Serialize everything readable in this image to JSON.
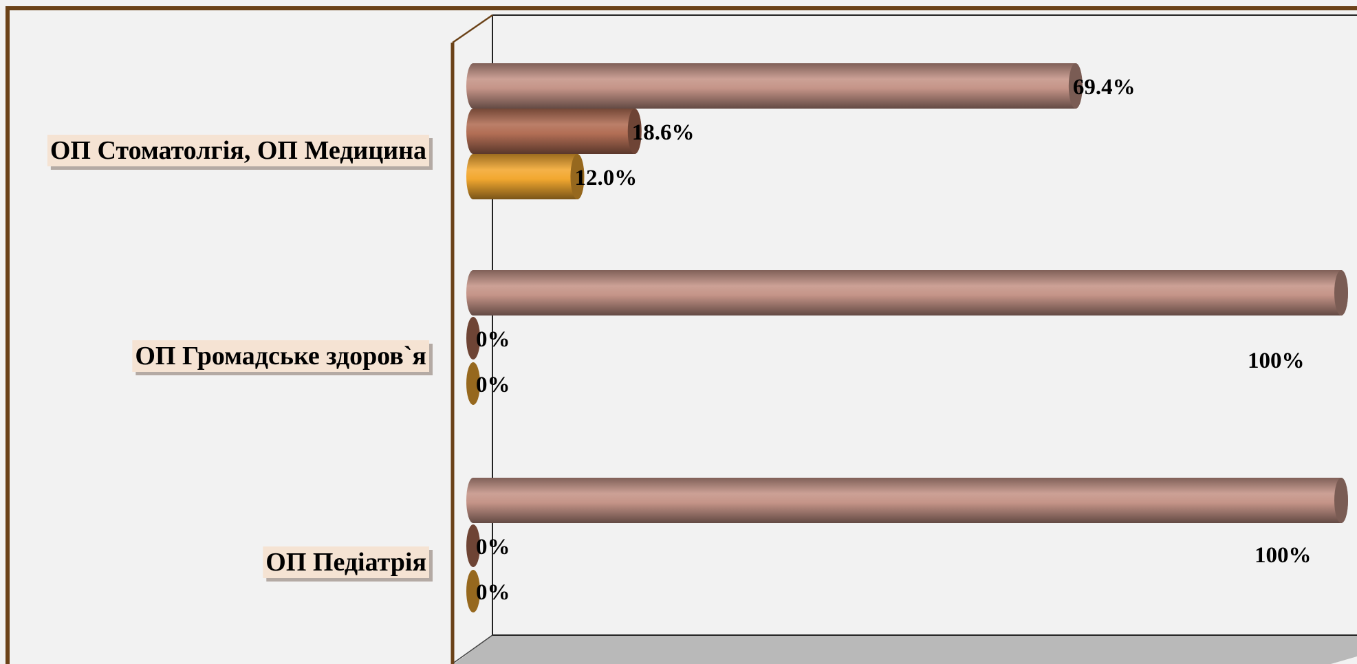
{
  "chart_data": {
    "type": "bar",
    "orientation": "horizontal",
    "style": "3d-cylinder",
    "categories": [
      "ОП Стоматолгія, ОП Медицина",
      "ОП Громадське здоров`я",
      "ОП Педіатрія"
    ],
    "series": [
      {
        "color": "#c59488",
        "values": [
          69.4,
          100,
          100
        ],
        "labels": [
          "69.4%",
          "100%",
          "100%"
        ]
      },
      {
        "color": "#b26e55",
        "values": [
          18.6,
          0,
          0
        ],
        "labels": [
          "18.6%",
          "0%",
          "0%"
        ]
      },
      {
        "color": "#f2a830",
        "values": [
          12.0,
          0,
          0
        ],
        "labels": [
          "12.0%",
          "0%",
          "0%"
        ]
      }
    ],
    "xlim": [
      0,
      100
    ],
    "grid": false,
    "legend": "none",
    "colors": {
      "frame": "#6b4218",
      "category_label_bg": "#f5e3d3",
      "floor": "#b8b8b8",
      "background": "#f2f2f2"
    }
  }
}
